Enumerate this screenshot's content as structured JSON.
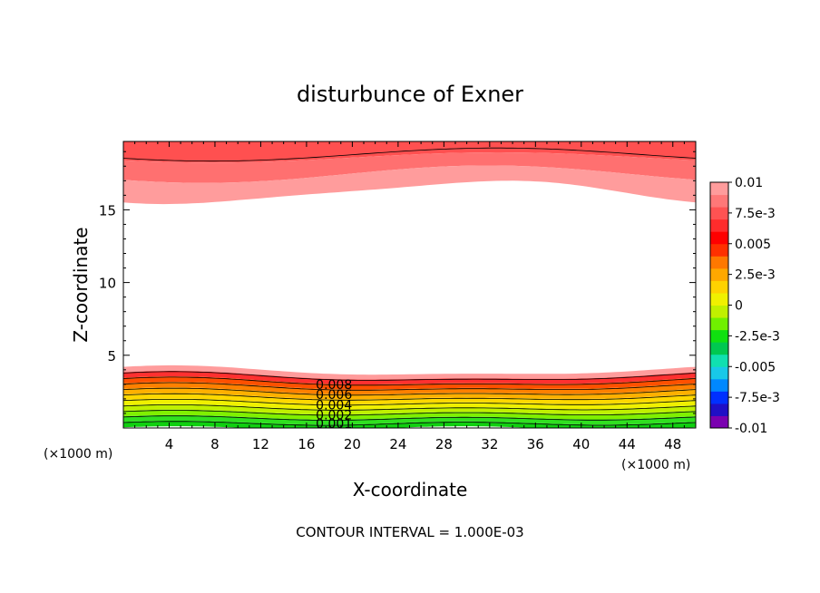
{
  "chart_data": {
    "type": "contour",
    "title": "disturbunce of Exner",
    "xlabel": "X-coordinate",
    "ylabel": "Z-coordinate",
    "x_unit": "(×1000 m)",
    "z_unit": "(×1000 m)",
    "xlim": [
      0,
      50
    ],
    "ylim": [
      0,
      19.7
    ],
    "x_ticks": [
      4,
      8,
      12,
      16,
      20,
      24,
      28,
      32,
      36,
      40,
      44,
      48
    ],
    "y_ticks": [
      5,
      10,
      15
    ],
    "contour_interval_text": "CONTOUR INTERVAL = 1.000E-03",
    "contour_interval": 0.001,
    "contour_labels": [
      "0.008",
      "0.006",
      "0.004",
      "0.002",
      "0.001"
    ],
    "colorbar": {
      "labels": [
        "0.01",
        "7.5e-3",
        "0.005",
        "2.5e-3",
        "0",
        "-2.5e-3",
        "-0.005",
        "-7.5e-3",
        "-0.01"
      ],
      "min": -0.01,
      "max": 0.01,
      "colors": [
        "#7a00b0",
        "#1f0fc6",
        "#0030ff",
        "#0088ff",
        "#18c8e8",
        "#10e0b0",
        "#00c850",
        "#10e010",
        "#70f000",
        "#c0f000",
        "#f0f000",
        "#ffd200",
        "#ffa800",
        "#ff7800",
        "#ff3000",
        "#ff0000",
        "#ff2c2c",
        "#ff5252",
        "#ff7878",
        "#ff9c9c"
      ]
    },
    "field_description": "Exner disturbance; positive near surface rising to 0.004 at z≈3.5 km and near 0.01 above z≈16 km; undisturbed middle layer"
  }
}
